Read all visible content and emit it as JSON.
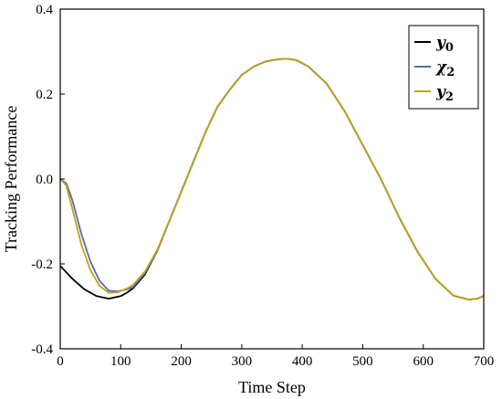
{
  "chart_data": {
    "type": "line",
    "title": "",
    "xlabel": "Time Step",
    "ylabel": "Tracking Performance",
    "xlim": [
      0,
      700
    ],
    "ylim": [
      -0.4,
      0.4
    ],
    "xticks": [
      "0",
      "100",
      "200",
      "300",
      "400",
      "500",
      "600",
      "700"
    ],
    "yticks": [
      "-0.4",
      "-0.2",
      "0.0",
      "0.2",
      "0.4"
    ],
    "grid": false,
    "legend_position": "top-right",
    "colors": {
      "y0": "#000000",
      "x2": "#5a68b5",
      "y2": "#bfa31a"
    },
    "series": [
      {
        "key": "y0",
        "name": "y",
        "sub": "0",
        "x": [
          0,
          20,
          40,
          60,
          80,
          100,
          110,
          120,
          140,
          160,
          180,
          200,
          220,
          240,
          260,
          280,
          300,
          320,
          340,
          360,
          375,
          390,
          410,
          440,
          470,
          500,
          530,
          560,
          590,
          620,
          650,
          675,
          690,
          700
        ],
        "y": [
          -0.205,
          -0.235,
          -0.26,
          -0.276,
          -0.282,
          -0.276,
          -0.268,
          -0.258,
          -0.225,
          -0.17,
          -0.1,
          -0.03,
          0.04,
          0.11,
          0.17,
          0.21,
          0.245,
          0.265,
          0.277,
          0.282,
          0.283,
          0.28,
          0.265,
          0.225,
          0.16,
          0.08,
          0.0,
          -0.09,
          -0.17,
          -0.235,
          -0.275,
          -0.284,
          -0.282,
          -0.275
        ]
      },
      {
        "key": "x2",
        "name": "χ",
        "sub": "2",
        "x": [
          0,
          10,
          20,
          35,
          50,
          65,
          80,
          95,
          110,
          120,
          140,
          160,
          180,
          200,
          220,
          240,
          260,
          280,
          300,
          320,
          340,
          360,
          375,
          390,
          410,
          440,
          470,
          500,
          530,
          560,
          590,
          620,
          650,
          675,
          690,
          700
        ],
        "y": [
          0.0,
          -0.01,
          -0.05,
          -0.13,
          -0.195,
          -0.24,
          -0.263,
          -0.265,
          -0.26,
          -0.255,
          -0.222,
          -0.17,
          -0.1,
          -0.03,
          0.04,
          0.11,
          0.17,
          0.21,
          0.245,
          0.265,
          0.277,
          0.282,
          0.283,
          0.28,
          0.265,
          0.225,
          0.16,
          0.08,
          0.0,
          -0.09,
          -0.17,
          -0.235,
          -0.275,
          -0.284,
          -0.282,
          -0.275
        ]
      },
      {
        "key": "y2",
        "name": "y",
        "sub": "2",
        "x": [
          0,
          10,
          20,
          35,
          50,
          65,
          80,
          95,
          110,
          120,
          140,
          160,
          180,
          200,
          220,
          240,
          260,
          280,
          300,
          320,
          340,
          360,
          375,
          390,
          410,
          440,
          470,
          500,
          530,
          560,
          590,
          620,
          650,
          675,
          690,
          700
        ],
        "y": [
          0.0,
          -0.015,
          -0.07,
          -0.155,
          -0.215,
          -0.252,
          -0.268,
          -0.267,
          -0.258,
          -0.25,
          -0.218,
          -0.168,
          -0.1,
          -0.03,
          0.04,
          0.11,
          0.17,
          0.21,
          0.245,
          0.265,
          0.277,
          0.282,
          0.283,
          0.28,
          0.265,
          0.225,
          0.16,
          0.08,
          0.0,
          -0.09,
          -0.17,
          -0.235,
          -0.275,
          -0.284,
          -0.282,
          -0.275
        ]
      }
    ]
  }
}
